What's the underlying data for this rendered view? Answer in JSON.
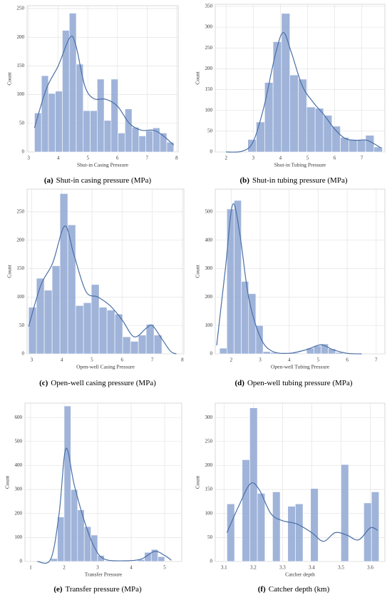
{
  "chart_data": [
    {
      "type": "histogram",
      "xlabel": "Shut-in Casing Pressure",
      "ylabel": "Count",
      "caption_label": "(a)",
      "caption": "Shut-in casing pressure (MPa)",
      "bins": [
        3.2,
        3.435,
        3.67,
        3.905,
        4.14,
        4.375,
        4.61,
        4.845,
        5.08,
        5.315,
        5.55,
        5.785,
        6.02,
        6.255,
        6.49,
        6.725,
        6.96,
        7.195,
        7.43,
        7.665,
        7.9
      ],
      "counts": [
        68,
        133,
        102,
        106,
        212,
        242,
        153,
        72,
        72,
        127,
        55,
        127,
        33,
        75,
        43,
        28,
        37,
        42,
        33,
        17
      ],
      "kde": {
        "x": [
          3.2,
          3.6,
          4.0,
          4.4,
          4.6,
          4.9,
          5.2,
          5.6,
          6.0,
          6.4,
          6.8,
          7.2,
          7.5,
          7.9
        ],
        "values": [
          42,
          110,
          150,
          200,
          185,
          115,
          93,
          92,
          80,
          50,
          38,
          38,
          30,
          12
        ]
      },
      "color": "#8fa7d4",
      "line_color": "#4a6fa5",
      "xlim": [
        2.95,
        8.05
      ],
      "ylim": [
        0,
        255
      ],
      "xticks": [
        3,
        4,
        5,
        6,
        7,
        8
      ],
      "yticks": [
        0,
        50,
        100,
        150,
        200,
        250
      ],
      "grid": true
    },
    {
      "type": "histogram",
      "xlabel": "Shut-in Tubing Pressure",
      "ylabel": "Count",
      "caption_label": "(b)",
      "caption": "Shut-in tubing pressure (MPa)",
      "bins": [
        2.8,
        3.11,
        3.42,
        3.73,
        4.04,
        4.35,
        4.66,
        4.97,
        5.28,
        5.59,
        5.9,
        6.21,
        6.52,
        6.83,
        7.14,
        7.45,
        7.76
      ],
      "counts": [
        30,
        72,
        167,
        265,
        333,
        185,
        175,
        108,
        105,
        88,
        62,
        35,
        30,
        30,
        40,
        12
      ],
      "kde": {
        "x": [
          2.0,
          2.6,
          3.0,
          3.4,
          3.8,
          4.1,
          4.4,
          4.8,
          5.2,
          5.6,
          6.0,
          6.4,
          6.8,
          7.2,
          7.7
        ],
        "values": [
          0,
          2,
          25,
          110,
          230,
          287,
          240,
          160,
          120,
          90,
          55,
          32,
          28,
          28,
          10
        ]
      },
      "color": "#8fa7d4",
      "line_color": "#4a6fa5",
      "xlim": [
        1.6,
        7.85
      ],
      "ylim": [
        0,
        355
      ],
      "xticks": [
        2,
        3,
        4,
        5,
        6,
        7
      ],
      "yticks": [
        0,
        50,
        100,
        150,
        200,
        250,
        300,
        350
      ],
      "grid": true
    },
    {
      "type": "histogram",
      "xlabel": "Open-well Casing Pressure",
      "ylabel": "Count",
      "caption_label": "(c)",
      "caption": "Open-well casing pressure (MPa)",
      "bins": [
        2.9,
        3.16,
        3.42,
        3.68,
        3.94,
        4.2,
        4.46,
        4.72,
        4.98,
        5.24,
        5.5,
        5.76,
        6.02,
        6.28,
        6.54,
        6.8,
        7.06,
        7.32
      ],
      "counts": [
        82,
        133,
        112,
        155,
        282,
        227,
        85,
        90,
        122,
        82,
        77,
        70,
        30,
        22,
        33,
        52,
        33
      ],
      "kde": {
        "x": [
          2.9,
          3.3,
          3.7,
          4.1,
          4.4,
          4.8,
          5.2,
          5.6,
          6.0,
          6.4,
          6.8,
          7.0,
          7.3,
          7.6,
          7.8
        ],
        "values": [
          48,
          120,
          160,
          225,
          175,
          110,
          100,
          85,
          60,
          30,
          45,
          50,
          28,
          5,
          0
        ]
      },
      "color": "#8fa7d4",
      "line_color": "#4a6fa5",
      "xlim": [
        2.85,
        8.05
      ],
      "ylim": [
        0,
        290
      ],
      "xticks": [
        3,
        4,
        5,
        6,
        7,
        8
      ],
      "yticks": [
        0,
        50,
        100,
        150,
        200,
        250
      ],
      "grid": true
    },
    {
      "type": "histogram",
      "xlabel": "Open-well Tubing Pressure",
      "ylabel": "Count",
      "caption_label": "(d)",
      "caption": "Open-well tubing pressure (MPa)",
      "bins": [
        1.6,
        1.85,
        2.1,
        2.35,
        2.6,
        2.85,
        3.1,
        3.35,
        3.6,
        3.85,
        4.1,
        4.35,
        4.6,
        4.85,
        5.1,
        5.35,
        5.6,
        5.85
      ],
      "counts": [
        20,
        510,
        540,
        255,
        212,
        100,
        8,
        5,
        3,
        2,
        3,
        2,
        20,
        28,
        35,
        18,
        5
      ],
      "kde": {
        "x": [
          1.5,
          1.8,
          2.05,
          2.3,
          2.6,
          3.0,
          3.4,
          4.0,
          4.6,
          5.1,
          5.5,
          6.0,
          6.5
        ],
        "values": [
          30,
          300,
          525,
          420,
          200,
          60,
          10,
          2,
          15,
          32,
          15,
          2,
          0
        ]
      },
      "color": "#8fa7d4",
      "line_color": "#4a6fa5",
      "xlim": [
        1.45,
        7.3
      ],
      "ylim": [
        0,
        580
      ],
      "xticks": [
        2,
        3,
        4,
        5,
        6,
        7
      ],
      "yticks": [
        0,
        100,
        200,
        300,
        400,
        500
      ],
      "grid": true
    },
    {
      "type": "histogram",
      "xlabel": "Transfer Pressure",
      "ylabel": "Count",
      "caption_label": "(e)",
      "caption": "Transfer pressure (MPa)",
      "bins": [
        1.6,
        1.8,
        2.0,
        2.2,
        2.4,
        2.6,
        2.8,
        3.0,
        3.2,
        3.4,
        3.6,
        3.8,
        4.0,
        4.2,
        4.4,
        4.6,
        4.8,
        5.0
      ],
      "counts": [
        12,
        185,
        648,
        300,
        215,
        145,
        110,
        25,
        3,
        2,
        1,
        1,
        2,
        8,
        38,
        50,
        20
      ],
      "kde": {
        "x": [
          1.2,
          1.6,
          1.85,
          2.05,
          2.3,
          2.6,
          2.9,
          3.2,
          3.8,
          4.3,
          4.7,
          5.0,
          5.2
        ],
        "values": [
          0,
          10,
          200,
          470,
          320,
          170,
          60,
          10,
          3,
          10,
          42,
          25,
          5
        ]
      },
      "color": "#8fa7d4",
      "line_color": "#4a6fa5",
      "xlim": [
        0.83,
        5.51
      ],
      "ylim": [
        0,
        660
      ],
      "xticks": [
        1,
        2,
        3,
        4,
        5
      ],
      "yticks": [
        0,
        100,
        200,
        300,
        400,
        500,
        600
      ],
      "grid": true
    },
    {
      "type": "histogram",
      "xlabel": "Catcher depth",
      "ylabel": "Count",
      "caption_label": "(f)",
      "caption": "Catcher depth (km)",
      "bins": [
        3.11,
        3.136,
        3.162,
        3.188,
        3.214,
        3.24,
        3.266,
        3.292,
        3.318,
        3.344,
        3.37,
        3.396,
        3.422,
        3.448,
        3.474,
        3.5,
        3.526,
        3.552,
        3.578,
        3.604,
        3.63
      ],
      "counts": [
        120,
        0,
        212,
        320,
        142,
        0,
        145,
        0,
        115,
        120,
        0,
        152,
        0,
        0,
        0,
        202,
        0,
        0,
        122,
        145
      ],
      "kde": {
        "x": [
          3.11,
          3.15,
          3.19,
          3.22,
          3.26,
          3.3,
          3.35,
          3.4,
          3.44,
          3.48,
          3.52,
          3.56,
          3.6,
          3.625
        ],
        "values": [
          60,
          115,
          162,
          150,
          100,
          85,
          78,
          60,
          42,
          60,
          55,
          45,
          70,
          65
        ]
      },
      "color": "#8fa7d4",
      "line_color": "#4a6fa5",
      "xlim": [
        3.07,
        3.65
      ],
      "ylim": [
        0,
        330
      ],
      "xticks": [
        3.1,
        3.2,
        3.3,
        3.4,
        3.5,
        3.6
      ],
      "yticks": [
        0,
        50,
        100,
        150,
        200,
        250,
        300
      ],
      "grid": true
    }
  ]
}
